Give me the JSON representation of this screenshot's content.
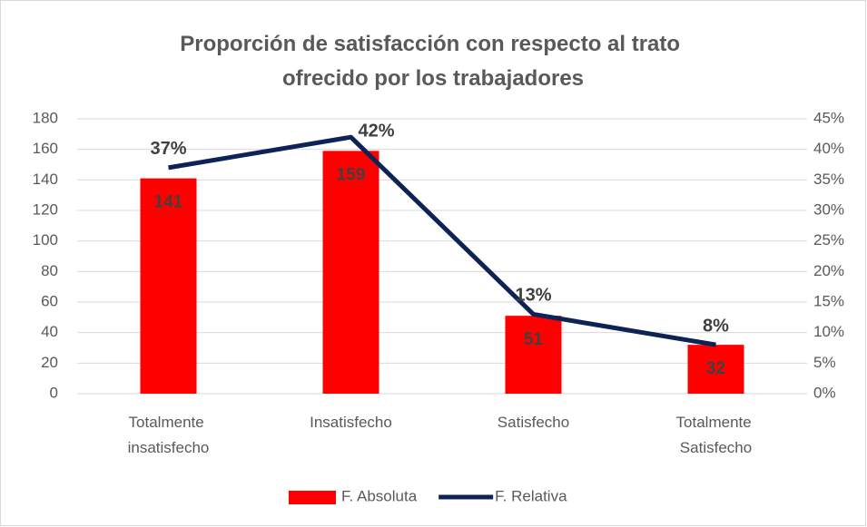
{
  "chart_data": {
    "type": "bar_line",
    "title": "Proporción de satisfacción con respecto al trato ofrecido por los trabajadores",
    "categories": [
      "Totalmente insatisfecho",
      "Insatisfecho",
      "Satisfecho",
      "Totalmente Satisfecho"
    ],
    "series": [
      {
        "name": "F. Absoluta",
        "type": "bar",
        "color": "#ff0000",
        "values": [
          141,
          159,
          51,
          32
        ]
      },
      {
        "name": "F. Relativa",
        "type": "line",
        "axis": "y2",
        "color": "#0d2356",
        "values": [
          37,
          42,
          13,
          8
        ],
        "value_labels": [
          "37%",
          "42%",
          "13%",
          "8%"
        ]
      }
    ],
    "ylim": [
      0,
      180
    ],
    "yticks": [
      0,
      20,
      40,
      60,
      80,
      100,
      120,
      140,
      160,
      180
    ],
    "y2lim": [
      0,
      45
    ],
    "y2ticks": [
      {
        "value": 0,
        "label": "0%"
      },
      {
        "value": 5,
        "label": "5%"
      },
      {
        "value": 10,
        "label": "10%"
      },
      {
        "value": 15,
        "label": "15%"
      },
      {
        "value": 20,
        "label": "20%"
      },
      {
        "value": 25,
        "label": "25%"
      },
      {
        "value": 30,
        "label": "30%"
      },
      {
        "value": 35,
        "label": "35%"
      },
      {
        "value": 40,
        "label": "40%"
      },
      {
        "value": 45,
        "label": "45%"
      }
    ],
    "grid": true,
    "legend": "bottom"
  }
}
